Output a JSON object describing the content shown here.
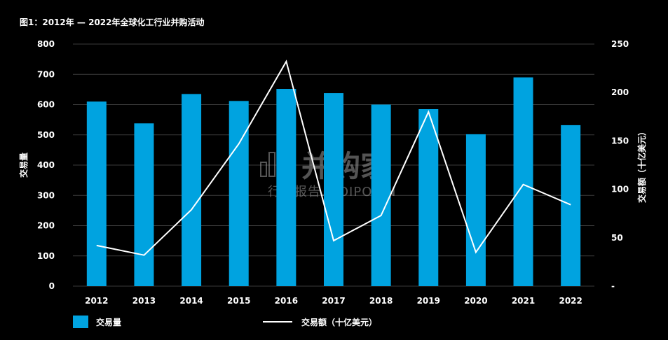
{
  "title": "图1：2012年 — 2022年全球化工行业并购活动",
  "watermark": {
    "brand": "并购家",
    "sub": "行业报告.IPOIPO.CN"
  },
  "colors": {
    "bar": "#00A3E0",
    "line": "#FFFFFF",
    "grid": "#3a3a3a",
    "background": "#000000"
  },
  "chart_data": {
    "type": "bar",
    "categories": [
      "2012",
      "2013",
      "2014",
      "2015",
      "2016",
      "2017",
      "2018",
      "2019",
      "2020",
      "2021",
      "2022"
    ],
    "series": [
      {
        "name": "交易量",
        "type": "bar",
        "axis": "left",
        "values": [
          610,
          538,
          635,
          612,
          652,
          638,
          600,
          585,
          502,
          690,
          532
        ]
      },
      {
        "name": "交易额（十亿美元）",
        "type": "line",
        "axis": "right",
        "values": [
          42,
          32,
          79,
          147,
          232,
          47,
          73,
          180,
          35,
          105,
          84
        ]
      }
    ],
    "ylabel": "交易量",
    "ylabel_right": "交易额（十亿美元）",
    "ylim": [
      0,
      800
    ],
    "ylim_right": [
      0,
      250
    ],
    "yticks": [
      "0",
      "100",
      "200",
      "300",
      "400",
      "500",
      "600",
      "700",
      "800"
    ],
    "yticks_right": [
      "-",
      "50",
      "100",
      "150",
      "200",
      "250"
    ],
    "grid": true,
    "legend": "bottom"
  }
}
